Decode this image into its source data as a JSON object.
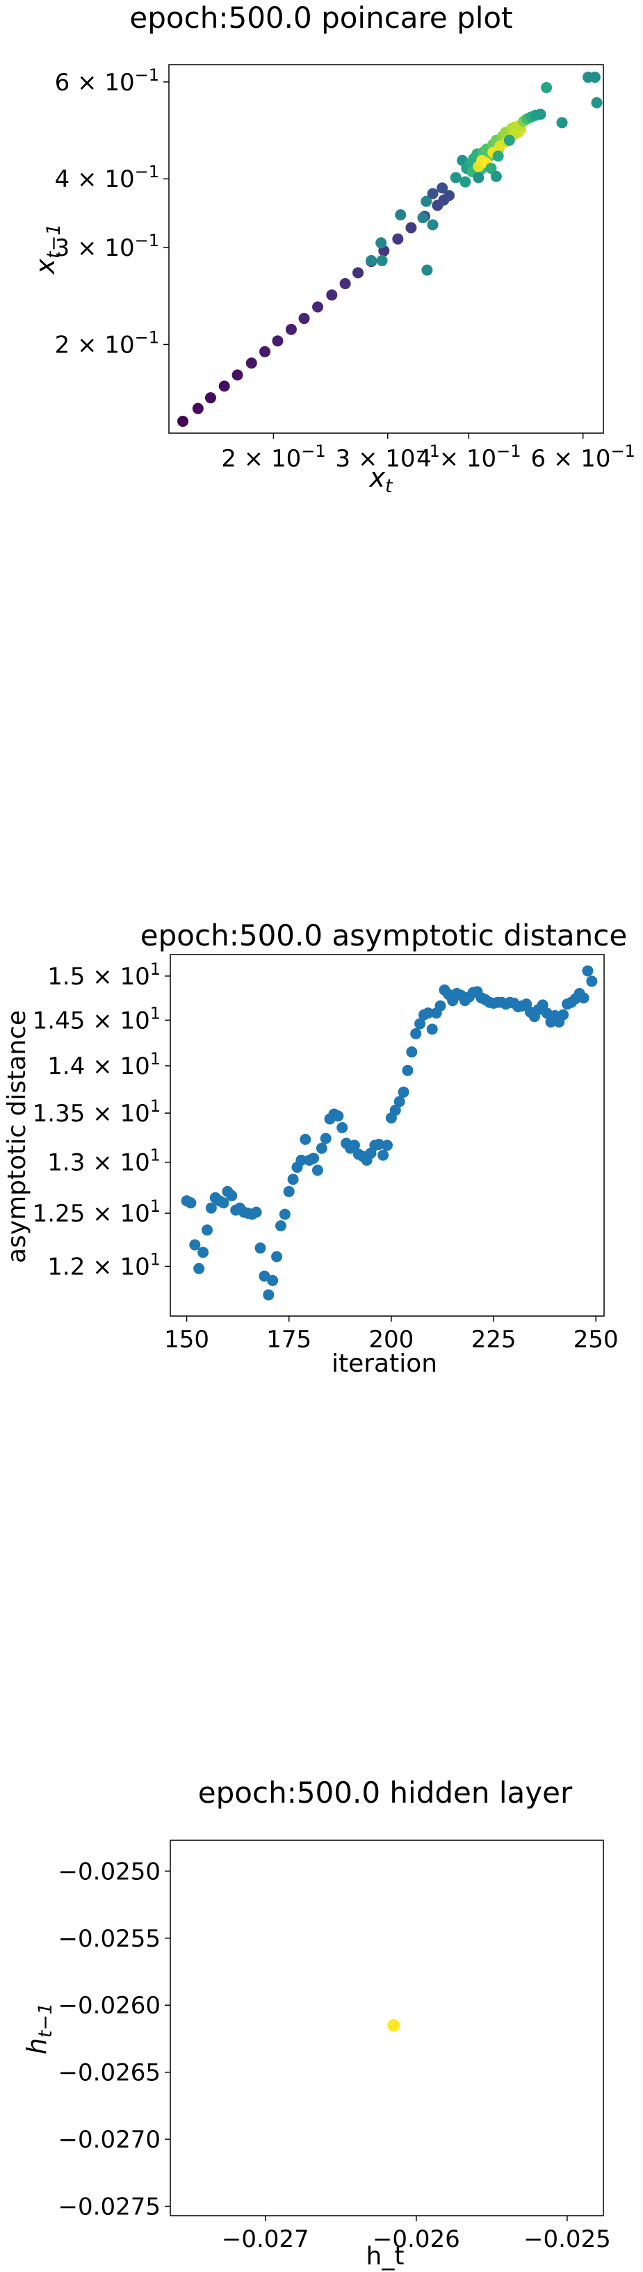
{
  "chart_data": [
    {
      "type": "scatter",
      "title": "epoch:500.0 poincare plot",
      "xlabel": "x",
      "xlabel_sub": "t",
      "ylabel": "x",
      "ylabel_sub": "t−1",
      "xscale": "log",
      "yscale": "log",
      "xlim": [
        0.138,
        0.645
      ],
      "ylim": [
        0.138,
        0.645
      ],
      "grid": false,
      "colormap": "viridis",
      "xticks": [
        {
          "value": 0.2,
          "mantissa": "2",
          "exp": "−1"
        },
        {
          "value": 0.3,
          "mantissa": "3",
          "exp": "−1"
        },
        {
          "value": 0.4,
          "mantissa": "4",
          "exp": "−1"
        },
        {
          "value": 0.6,
          "mantissa": "6",
          "exp": "−1"
        }
      ],
      "yticks": [
        {
          "value": 0.2,
          "mantissa": "2",
          "exp": "−1"
        },
        {
          "value": 0.3,
          "mantissa": "3",
          "exp": "−1"
        },
        {
          "value": 0.4,
          "mantissa": "4",
          "exp": "−1"
        },
        {
          "value": 0.6,
          "mantissa": "6",
          "exp": "−1"
        }
      ],
      "points": [
        {
          "x": 0.145,
          "y": 0.145,
          "c": 0.0
        },
        {
          "x": 0.153,
          "y": 0.153,
          "c": 0.02
        },
        {
          "x": 0.16,
          "y": 0.16,
          "c": 0.03
        },
        {
          "x": 0.168,
          "y": 0.168,
          "c": 0.04
        },
        {
          "x": 0.176,
          "y": 0.176,
          "c": 0.05
        },
        {
          "x": 0.185,
          "y": 0.185,
          "c": 0.06
        },
        {
          "x": 0.194,
          "y": 0.194,
          "c": 0.07
        },
        {
          "x": 0.203,
          "y": 0.203,
          "c": 0.08
        },
        {
          "x": 0.213,
          "y": 0.213,
          "c": 0.09
        },
        {
          "x": 0.223,
          "y": 0.223,
          "c": 0.1
        },
        {
          "x": 0.234,
          "y": 0.234,
          "c": 0.11
        },
        {
          "x": 0.246,
          "y": 0.246,
          "c": 0.12
        },
        {
          "x": 0.258,
          "y": 0.258,
          "c": 0.13
        },
        {
          "x": 0.27,
          "y": 0.27,
          "c": 0.14
        },
        {
          "x": 0.283,
          "y": 0.283,
          "c": 0.15
        },
        {
          "x": 0.296,
          "y": 0.296,
          "c": 0.16
        },
        {
          "x": 0.311,
          "y": 0.311,
          "c": 0.17
        },
        {
          "x": 0.326,
          "y": 0.326,
          "c": 0.18
        },
        {
          "x": 0.342,
          "y": 0.342,
          "c": 0.19
        },
        {
          "x": 0.358,
          "y": 0.358,
          "c": 0.2
        },
        {
          "x": 0.366,
          "y": 0.366,
          "c": 0.21
        },
        {
          "x": 0.373,
          "y": 0.373,
          "c": 0.22
        },
        {
          "x": 0.364,
          "y": 0.385,
          "c": 0.24
        },
        {
          "x": 0.352,
          "y": 0.376,
          "c": 0.25
        },
        {
          "x": 0.34,
          "y": 0.34,
          "c": 0.45
        },
        {
          "x": 0.283,
          "y": 0.284,
          "c": 0.46
        },
        {
          "x": 0.293,
          "y": 0.306,
          "c": 0.47
        },
        {
          "x": 0.294,
          "y": 0.284,
          "c": 0.48
        },
        {
          "x": 0.314,
          "y": 0.344,
          "c": 0.44
        },
        {
          "x": 0.344,
          "y": 0.364,
          "c": 0.46
        },
        {
          "x": 0.352,
          "y": 0.33,
          "c": 0.47
        },
        {
          "x": 0.345,
          "y": 0.273,
          "c": 0.48
        },
        {
          "x": 0.395,
          "y": 0.395,
          "c": 0.55
        },
        {
          "x": 0.382,
          "y": 0.402,
          "c": 0.52
        },
        {
          "x": 0.391,
          "y": 0.432,
          "c": 0.52
        },
        {
          "x": 0.397,
          "y": 0.418,
          "c": 0.56
        },
        {
          "x": 0.402,
          "y": 0.426,
          "c": 0.6
        },
        {
          "x": 0.407,
          "y": 0.435,
          "c": 0.62
        },
        {
          "x": 0.412,
          "y": 0.444,
          "c": 0.64
        },
        {
          "x": 0.405,
          "y": 0.412,
          "c": 0.66
        },
        {
          "x": 0.418,
          "y": 0.416,
          "c": 0.68
        },
        {
          "x": 0.421,
          "y": 0.447,
          "c": 0.7
        },
        {
          "x": 0.426,
          "y": 0.453,
          "c": 0.72
        },
        {
          "x": 0.431,
          "y": 0.44,
          "c": 0.74
        },
        {
          "x": 0.436,
          "y": 0.462,
          "c": 0.76
        },
        {
          "x": 0.441,
          "y": 0.47,
          "c": 0.78
        },
        {
          "x": 0.446,
          "y": 0.456,
          "c": 0.8
        },
        {
          "x": 0.451,
          "y": 0.478,
          "c": 0.82
        },
        {
          "x": 0.456,
          "y": 0.486,
          "c": 0.84
        },
        {
          "x": 0.461,
          "y": 0.471,
          "c": 0.86
        },
        {
          "x": 0.466,
          "y": 0.494,
          "c": 0.88
        },
        {
          "x": 0.471,
          "y": 0.497,
          "c": 0.9
        },
        {
          "x": 0.476,
          "y": 0.485,
          "c": 0.92
        },
        {
          "x": 0.481,
          "y": 0.492,
          "c": 0.94
        },
        {
          "x": 0.414,
          "y": 0.421,
          "c": 0.96
        },
        {
          "x": 0.419,
          "y": 0.432,
          "c": 0.98
        },
        {
          "x": 0.425,
          "y": 0.428,
          "c": 1.0
        },
        {
          "x": 0.436,
          "y": 0.447,
          "c": 0.97
        },
        {
          "x": 0.447,
          "y": 0.459,
          "c": 0.95
        },
        {
          "x": 0.458,
          "y": 0.468,
          "c": 0.93
        },
        {
          "x": 0.469,
          "y": 0.481,
          "c": 0.91
        },
        {
          "x": 0.479,
          "y": 0.5,
          "c": 0.9
        },
        {
          "x": 0.486,
          "y": 0.509,
          "c": 0.8
        },
        {
          "x": 0.492,
          "y": 0.514,
          "c": 0.7
        },
        {
          "x": 0.499,
          "y": 0.518,
          "c": 0.62
        },
        {
          "x": 0.507,
          "y": 0.522,
          "c": 0.56
        },
        {
          "x": 0.516,
          "y": 0.524,
          "c": 0.54
        },
        {
          "x": 0.462,
          "y": 0.47,
          "c": 0.58
        },
        {
          "x": 0.444,
          "y": 0.44,
          "c": 0.6
        },
        {
          "x": 0.433,
          "y": 0.418,
          "c": 0.62
        },
        {
          "x": 0.414,
          "y": 0.402,
          "c": 0.5
        },
        {
          "x": 0.441,
          "y": 0.404,
          "c": 0.53
        },
        {
          "x": 0.527,
          "y": 0.586,
          "c": 0.58
        },
        {
          "x": 0.557,
          "y": 0.506,
          "c": 0.52
        },
        {
          "x": 0.611,
          "y": 0.612,
          "c": 0.5
        },
        {
          "x": 0.626,
          "y": 0.612,
          "c": 0.5
        },
        {
          "x": 0.63,
          "y": 0.55,
          "c": 0.52
        }
      ]
    },
    {
      "type": "scatter",
      "title": "epoch:500.0 asymptotic distance",
      "xlabel": "iteration",
      "ylabel": "asymptotic distance",
      "yscale": "log",
      "xlim": [
        146,
        252
      ],
      "ylim": [
        11.55,
        15.25
      ],
      "grid": false,
      "color": "#1f77b4",
      "xticks": [
        150,
        175,
        200,
        225,
        250
      ],
      "yticks": [
        {
          "value": 12.0,
          "mantissa": "1.2",
          "exp": "1"
        },
        {
          "value": 12.5,
          "mantissa": "1.25",
          "exp": "1"
        },
        {
          "value": 13.0,
          "mantissa": "1.3",
          "exp": "1"
        },
        {
          "value": 13.5,
          "mantissa": "1.35",
          "exp": "1"
        },
        {
          "value": 14.0,
          "mantissa": "1.4",
          "exp": "1"
        },
        {
          "value": 14.5,
          "mantissa": "1.45",
          "exp": "1"
        },
        {
          "value": 15.0,
          "mantissa": "1.5",
          "exp": "1"
        }
      ],
      "x": [
        150,
        151,
        152,
        153,
        154,
        155,
        156,
        157,
        158,
        159,
        160,
        161,
        162,
        163,
        164,
        165,
        166,
        167,
        168,
        169,
        170,
        171,
        172,
        173,
        174,
        175,
        176,
        177,
        178,
        179,
        180,
        181,
        182,
        183,
        184,
        185,
        186,
        187,
        188,
        189,
        190,
        191,
        192,
        193,
        194,
        195,
        196,
        197,
        198,
        199,
        200,
        201,
        202,
        203,
        204,
        205,
        206,
        207,
        208,
        209,
        210,
        211,
        212,
        213,
        214,
        215,
        216,
        217,
        218,
        219,
        220,
        221,
        222,
        223,
        224,
        225,
        226,
        227,
        228,
        229,
        230,
        231,
        232,
        233,
        234,
        235,
        236,
        237,
        238,
        239,
        240,
        241,
        242,
        243,
        244,
        245,
        246,
        247,
        248,
        249
      ],
      "y": [
        12.62,
        12.6,
        12.2,
        11.98,
        12.13,
        12.34,
        12.55,
        12.65,
        12.62,
        12.6,
        12.71,
        12.67,
        12.53,
        12.55,
        12.51,
        12.5,
        12.49,
        12.51,
        12.17,
        11.91,
        11.74,
        11.87,
        12.09,
        12.38,
        12.49,
        12.71,
        12.83,
        12.95,
        13.02,
        13.23,
        13.02,
        13.04,
        12.92,
        13.14,
        13.24,
        13.44,
        13.49,
        13.47,
        13.35,
        13.19,
        13.14,
        13.17,
        13.08,
        13.06,
        13.02,
        13.09,
        13.17,
        13.18,
        13.07,
        13.17,
        13.45,
        13.53,
        13.62,
        13.72,
        13.95,
        14.15,
        14.35,
        14.46,
        14.56,
        14.58,
        14.4,
        14.58,
        14.66,
        14.84,
        14.79,
        14.72,
        14.8,
        14.78,
        14.72,
        14.76,
        14.81,
        14.82,
        14.75,
        14.73,
        14.7,
        14.69,
        14.7,
        14.7,
        14.68,
        14.7,
        14.69,
        14.65,
        14.66,
        14.68,
        14.59,
        14.54,
        14.62,
        14.67,
        14.58,
        14.48,
        14.55,
        14.48,
        14.56,
        14.68,
        14.7,
        14.74,
        14.8,
        14.75,
        15.06,
        14.94
      ]
    },
    {
      "type": "scatter",
      "title": "epoch:500.0 hidden layer",
      "xlabel": "h_t",
      "ylabel": "h",
      "ylabel_sub": "t−1",
      "xlim": [
        -0.02763,
        -0.02476
      ],
      "ylim": [
        -0.02757,
        -0.02477
      ],
      "grid": false,
      "xticks": [
        {
          "value": -0.027,
          "label": "−0.027"
        },
        {
          "value": -0.026,
          "label": "−0.026"
        },
        {
          "value": -0.025,
          "label": "−0.025"
        }
      ],
      "yticks": [
        {
          "value": -0.025,
          "label": "−0.0250"
        },
        {
          "value": -0.0255,
          "label": "−0.0255"
        },
        {
          "value": -0.026,
          "label": "−0.0260"
        },
        {
          "value": -0.0265,
          "label": "−0.0265"
        },
        {
          "value": -0.027,
          "label": "−0.0270"
        },
        {
          "value": -0.0275,
          "label": "−0.0275"
        }
      ],
      "points": [
        {
          "x": -0.02615,
          "y": -0.02615,
          "color": "#fde725"
        }
      ]
    }
  ]
}
